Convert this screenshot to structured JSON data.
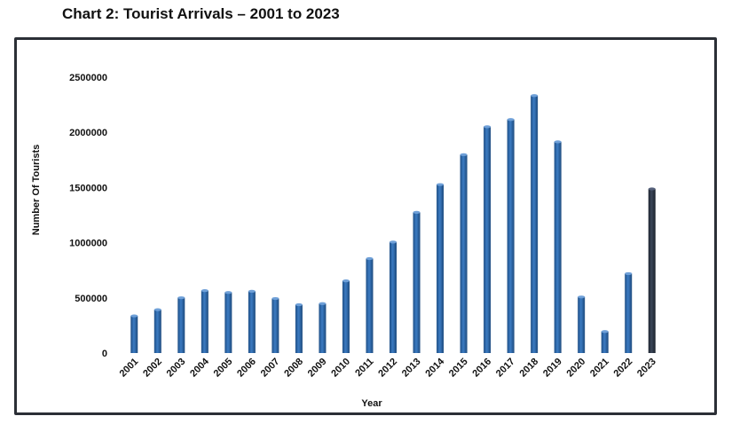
{
  "page": {
    "title": "Chart 2: Tourist Arrivals – 2001 to 2023"
  },
  "chart_data": {
    "type": "bar",
    "title": "",
    "xlabel": "Year",
    "ylabel": "Number Of Tourists",
    "ylim": [
      0,
      2500000
    ],
    "yticks": [
      "0",
      "500000",
      "1000000",
      "1500000",
      "2000000",
      "2500000"
    ],
    "grid": false,
    "categories": [
      "2001",
      "2002",
      "2003",
      "2004",
      "2005",
      "2006",
      "2007",
      "2008",
      "2009",
      "2010",
      "2011",
      "2012",
      "2013",
      "2014",
      "2015",
      "2016",
      "2017",
      "2018",
      "2019",
      "2020",
      "2021",
      "2022",
      "2023"
    ],
    "series": [
      {
        "values": [
          337000,
          393000,
          501000,
          566000,
          549000,
          560000,
          494000,
          438000,
          448000,
          654000,
          856000,
          1006000,
          1275000,
          1527000,
          1798000,
          2051000,
          2116000,
          2333000,
          1914000,
          508000,
          195000,
          720000,
          1487000
        ],
        "color": "#2e65a6",
        "highlight_color": "#2a3445",
        "highlight_index": 22
      }
    ]
  }
}
